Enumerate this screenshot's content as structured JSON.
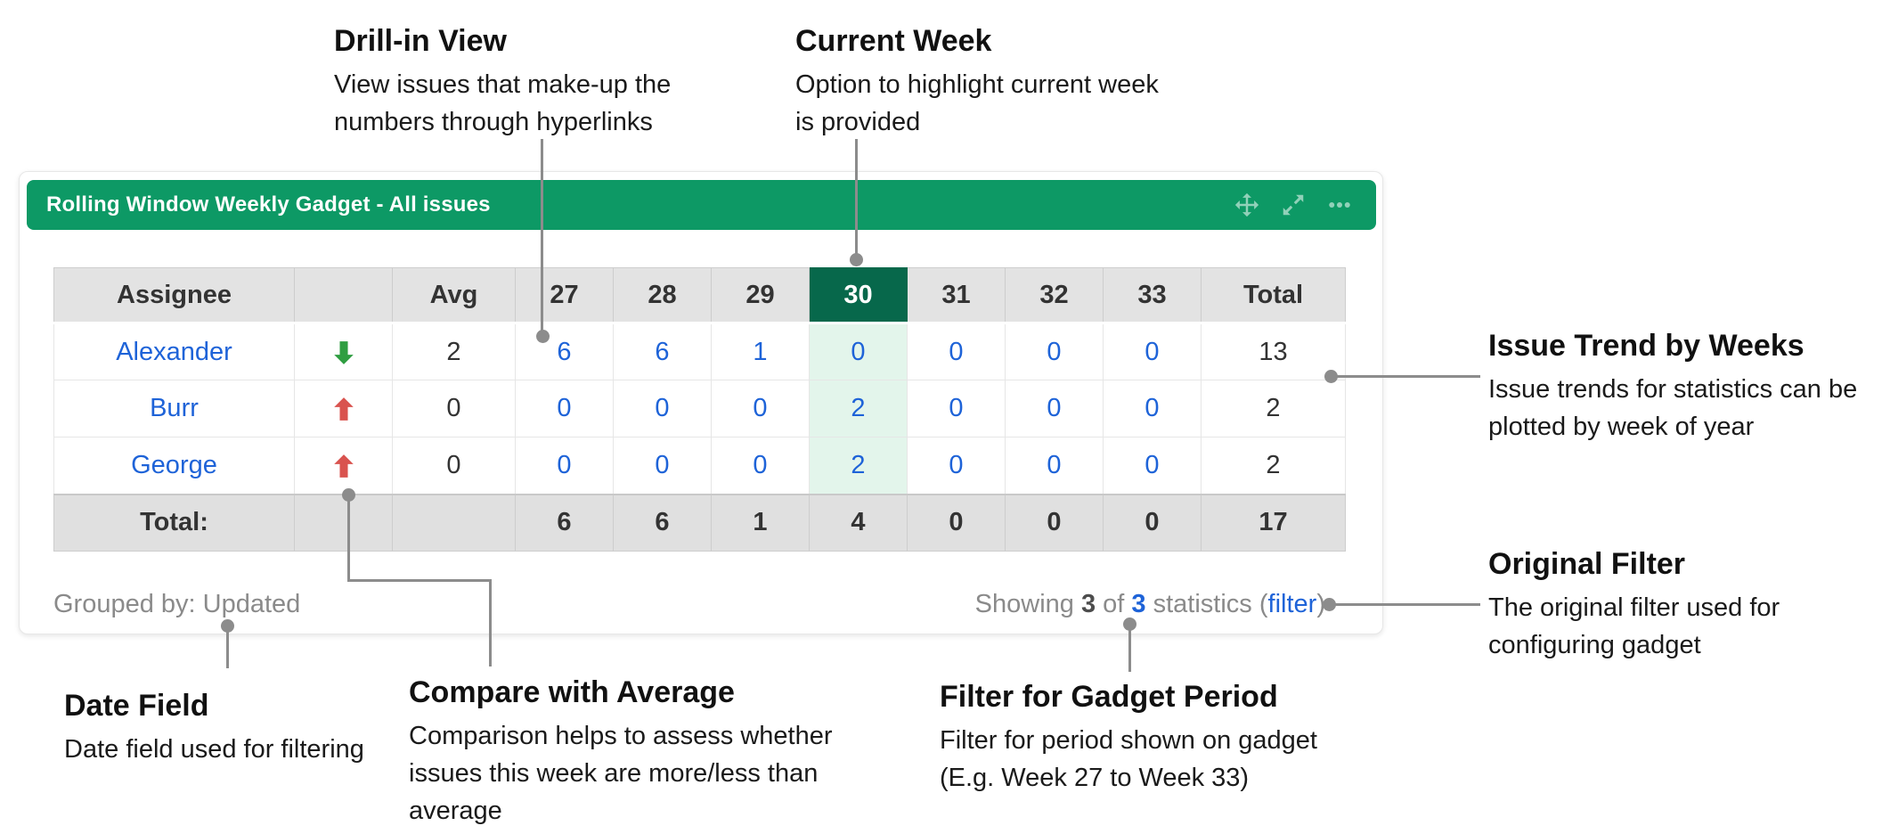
{
  "gadget": {
    "title": "Rolling Window Weekly Gadget - All issues",
    "header_icons": [
      "move-icon",
      "expand-icon",
      "more-icon"
    ],
    "table": {
      "columns": [
        "Assignee",
        "",
        "Avg",
        "27",
        "28",
        "29",
        "30",
        "31",
        "32",
        "33",
        "Total"
      ],
      "current_week": "30",
      "rows": [
        {
          "assignee": "Alexander",
          "trend": "down",
          "avg": "2",
          "weeks": [
            "6",
            "6",
            "1",
            "0",
            "0",
            "0",
            "0"
          ],
          "total": "13"
        },
        {
          "assignee": "Burr",
          "trend": "up",
          "avg": "0",
          "weeks": [
            "0",
            "0",
            "0",
            "2",
            "0",
            "0",
            "0"
          ],
          "total": "2"
        },
        {
          "assignee": "George",
          "trend": "up",
          "avg": "0",
          "weeks": [
            "0",
            "0",
            "0",
            "2",
            "0",
            "0",
            "0"
          ],
          "total": "2"
        }
      ],
      "totals": {
        "label": "Total:",
        "weeks": [
          "6",
          "6",
          "1",
          "4",
          "0",
          "0",
          "0"
        ],
        "total": "17"
      }
    },
    "footer": {
      "grouped_by": "Grouped by: Updated",
      "showing_prefix": "Showing ",
      "shown_count": "3",
      "of": " of ",
      "total_count": "3",
      "statistics_open": " statistics (",
      "filter_link": "filter",
      "close_paren": ")"
    }
  },
  "annotations": {
    "drill_in": {
      "title": "Drill-in View",
      "line1": "View issues that make-up the",
      "line2": "numbers through hyperlinks"
    },
    "current_week": {
      "title": "Current Week",
      "line1": "Option to highlight current week",
      "line2": "is provided"
    },
    "issue_trend": {
      "title": "Issue Trend by Weeks",
      "line1": "Issue trends for statistics can be",
      "line2": "plotted by week of year"
    },
    "original_filter": {
      "title": "Original Filter",
      "line1": "The original filter used for",
      "line2": "configuring gadget"
    },
    "date_field": {
      "title": "Date Field",
      "line1": "Date field used for filtering"
    },
    "compare_average": {
      "title": "Compare with Average",
      "line1": "Comparison helps to assess whether",
      "line2": "issues this week are more/less than",
      "line3": "average"
    },
    "gadget_period": {
      "title": "Filter for Gadget Period",
      "line1": "Filter for period shown on gadget",
      "line2": "(E.g. Week 27 to Week 33)"
    }
  },
  "colors": {
    "header_green": "#0D9965",
    "current_week_green": "#07684B",
    "highlight_mint": "#E3F5EB",
    "link_blue": "#1E63D8",
    "up_red": "#D9534F",
    "down_green": "#2F9E41",
    "connector_gray": "#8C8C8C"
  }
}
